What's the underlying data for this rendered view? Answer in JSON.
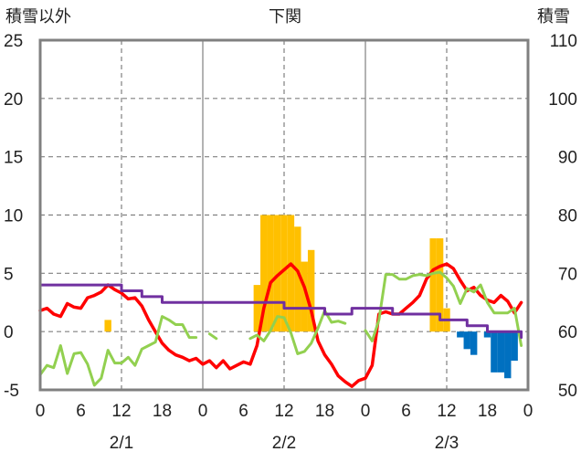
{
  "chart_data": {
    "type": "line",
    "title": "下関",
    "left_axis": {
      "label": "積雪以外",
      "ticks": [
        25,
        20,
        15,
        10,
        5,
        0,
        -5
      ],
      "ylim": [
        -5,
        25
      ]
    },
    "right_axis": {
      "label": "積雪",
      "ticks": [
        110,
        100,
        90,
        80,
        70,
        60,
        50
      ],
      "ylim": [
        50,
        110
      ]
    },
    "x_hour_ticks": [
      "0",
      "6",
      "12",
      "18",
      "0",
      "6",
      "12",
      "18",
      "0",
      "6",
      "12",
      "18",
      "0"
    ],
    "x_tick_hours": [
      0,
      6,
      12,
      18,
      24,
      30,
      36,
      42,
      48,
      54,
      60,
      66,
      72
    ],
    "x_date_labels": [
      "2/1",
      "2/2",
      "2/3"
    ],
    "x_date_hours": [
      12,
      36,
      60
    ],
    "xlim": [
      0,
      72
    ],
    "grid": {
      "horizontal": "dashed",
      "vertical_midday": "dashed",
      "vertical_midnight": "solid"
    },
    "colors": {
      "positive_bars": "#ffc000",
      "negative_bars": "#0070c0",
      "red_line": "#ff0000",
      "green_line": "#92d050",
      "purple_line": "#7030a0",
      "frame": "#808080",
      "grid": "#808080"
    },
    "bars": {
      "axis": "left",
      "values": [
        [
          10,
          1
        ],
        [
          32,
          4
        ],
        [
          33,
          10
        ],
        [
          34,
          10
        ],
        [
          35,
          10
        ],
        [
          36,
          10
        ],
        [
          37,
          10
        ],
        [
          38,
          9
        ],
        [
          39,
          6
        ],
        [
          40,
          7
        ],
        [
          58,
          8
        ],
        [
          59,
          8
        ],
        [
          60,
          2
        ],
        [
          62,
          -0.5
        ],
        [
          63,
          -1.5
        ],
        [
          64,
          -2
        ],
        [
          66,
          -0.5
        ],
        [
          67,
          -3.5
        ],
        [
          68,
          -3.5
        ],
        [
          69,
          -4
        ],
        [
          70,
          -2.5
        ]
      ]
    },
    "series": [
      {
        "color": "red",
        "axis": "left",
        "points": [
          [
            0,
            1.8
          ],
          [
            1,
            2.0
          ],
          [
            2,
            1.5
          ],
          [
            3,
            1.3
          ],
          [
            4,
            2.4
          ],
          [
            5,
            2.1
          ],
          [
            6,
            2.0
          ],
          [
            7,
            2.9
          ],
          [
            8,
            3.1
          ],
          [
            9,
            3.4
          ],
          [
            10,
            4.0
          ],
          [
            11,
            3.6
          ],
          [
            12,
            3.3
          ],
          [
            13,
            2.8
          ],
          [
            14,
            2.9
          ],
          [
            15,
            2.2
          ],
          [
            16,
            1.0
          ],
          [
            17,
            0.0
          ],
          [
            18,
            -1.0
          ],
          [
            19,
            -1.6
          ],
          [
            20,
            -2.0
          ],
          [
            21,
            -2.2
          ],
          [
            22,
            -2.5
          ],
          [
            23,
            -2.3
          ],
          [
            24,
            -2.8
          ],
          [
            25,
            -2.5
          ],
          [
            26,
            -3.1
          ],
          [
            27,
            -2.5
          ],
          [
            28,
            -3.2
          ],
          [
            29,
            -2.9
          ],
          [
            30,
            -2.6
          ],
          [
            31,
            -2.8
          ],
          [
            32,
            -1.2
          ],
          [
            33,
            2.0
          ],
          [
            34,
            4.2
          ],
          [
            35,
            4.8
          ],
          [
            36,
            5.3
          ],
          [
            37,
            5.8
          ],
          [
            38,
            5.2
          ],
          [
            39,
            3.8
          ],
          [
            40,
            1.8
          ],
          [
            41,
            -0.8
          ],
          [
            42,
            -2.0
          ],
          [
            43,
            -2.8
          ],
          [
            44,
            -3.8
          ],
          [
            45,
            -4.3
          ],
          [
            46,
            -4.7
          ],
          [
            47,
            -4.2
          ],
          [
            48,
            -4.0
          ],
          [
            49,
            -2.9
          ],
          [
            50,
            1.5
          ],
          [
            51,
            1.7
          ],
          [
            52,
            1.5
          ],
          [
            53,
            1.5
          ],
          [
            54,
            2.0
          ],
          [
            55,
            2.5
          ],
          [
            56,
            3.1
          ],
          [
            57,
            4.5
          ],
          [
            58,
            5.3
          ],
          [
            59,
            5.6
          ],
          [
            60,
            5.8
          ],
          [
            61,
            5.4
          ],
          [
            62,
            4.4
          ],
          [
            63,
            3.5
          ],
          [
            64,
            3.8
          ],
          [
            65,
            3.1
          ],
          [
            66,
            2.7
          ],
          [
            67,
            2.5
          ],
          [
            68,
            3.1
          ],
          [
            69,
            2.6
          ],
          [
            70,
            1.6
          ],
          [
            71,
            2.5
          ]
        ]
      },
      {
        "color": "green",
        "axis": "left",
        "points": [
          [
            0,
            -3.7
          ],
          [
            1,
            -2.9
          ],
          [
            2,
            -3.1
          ],
          [
            3,
            -1.2
          ],
          [
            4,
            -3.6
          ],
          [
            5,
            -1.9
          ],
          [
            6,
            -1.8
          ],
          [
            7,
            -2.8
          ],
          [
            8,
            -4.6
          ],
          [
            9,
            -4.0
          ],
          [
            10,
            -1.6
          ],
          [
            11,
            -2.7
          ],
          [
            12,
            -2.7
          ],
          [
            13,
            -2.2
          ],
          [
            14,
            -2.9
          ],
          [
            15,
            -1.5
          ],
          [
            16,
            -1.2
          ],
          [
            17,
            -0.9
          ],
          [
            18,
            1.3
          ],
          [
            19,
            1.0
          ],
          [
            20,
            0.6
          ],
          [
            21,
            0.6
          ],
          [
            22,
            -0.5
          ],
          [
            23,
            -0.5
          ],
          null,
          [
            25,
            -0.2
          ],
          [
            26,
            -0.6
          ],
          null,
          [
            31,
            -0.6
          ],
          [
            32,
            -0.3
          ],
          [
            33,
            -0.8
          ],
          [
            34,
            0.1
          ],
          [
            35,
            1.3
          ],
          [
            36,
            1.2
          ],
          [
            37,
            -0.1
          ],
          [
            38,
            -1.9
          ],
          [
            39,
            -1.7
          ],
          [
            40,
            -1.0
          ],
          [
            41,
            0.3
          ],
          [
            42,
            1.8
          ],
          [
            43,
            0.8
          ],
          [
            44,
            0.9
          ],
          [
            45,
            0.7
          ],
          null,
          [
            48,
            0.1
          ],
          [
            49,
            -0.8
          ],
          [
            50,
            1.0
          ],
          [
            51,
            4.9
          ],
          [
            52,
            4.9
          ],
          [
            53,
            4.5
          ],
          [
            54,
            4.5
          ],
          [
            55,
            4.8
          ],
          [
            56,
            4.9
          ],
          [
            57,
            4.8
          ],
          [
            58,
            5.0
          ],
          [
            59,
            5.1
          ],
          [
            60,
            4.6
          ],
          [
            61,
            3.9
          ],
          [
            62,
            2.4
          ],
          [
            63,
            3.7
          ],
          [
            64,
            3.4
          ],
          [
            65,
            4.0
          ],
          [
            66,
            2.5
          ],
          [
            67,
            1.6
          ],
          [
            68,
            1.6
          ],
          [
            69,
            1.6
          ],
          [
            70,
            2.0
          ],
          [
            71,
            -1.2
          ]
        ]
      },
      {
        "color": "purple",
        "axis": "right",
        "points": [
          [
            0,
            68
          ],
          [
            12,
            68
          ],
          [
            12,
            67
          ],
          [
            15,
            67
          ],
          [
            15,
            66
          ],
          [
            18,
            66
          ],
          [
            18,
            65
          ],
          [
            36,
            65
          ],
          [
            36,
            64
          ],
          [
            42,
            64
          ],
          [
            42,
            63
          ],
          [
            46,
            63
          ],
          [
            46,
            64
          ],
          [
            52,
            64
          ],
          [
            52,
            63
          ],
          [
            59,
            63
          ],
          [
            59,
            62
          ],
          [
            63,
            62
          ],
          [
            63,
            61
          ],
          [
            66,
            61
          ],
          [
            66,
            60
          ],
          [
            71,
            60
          ],
          [
            71,
            59
          ]
        ]
      }
    ]
  }
}
